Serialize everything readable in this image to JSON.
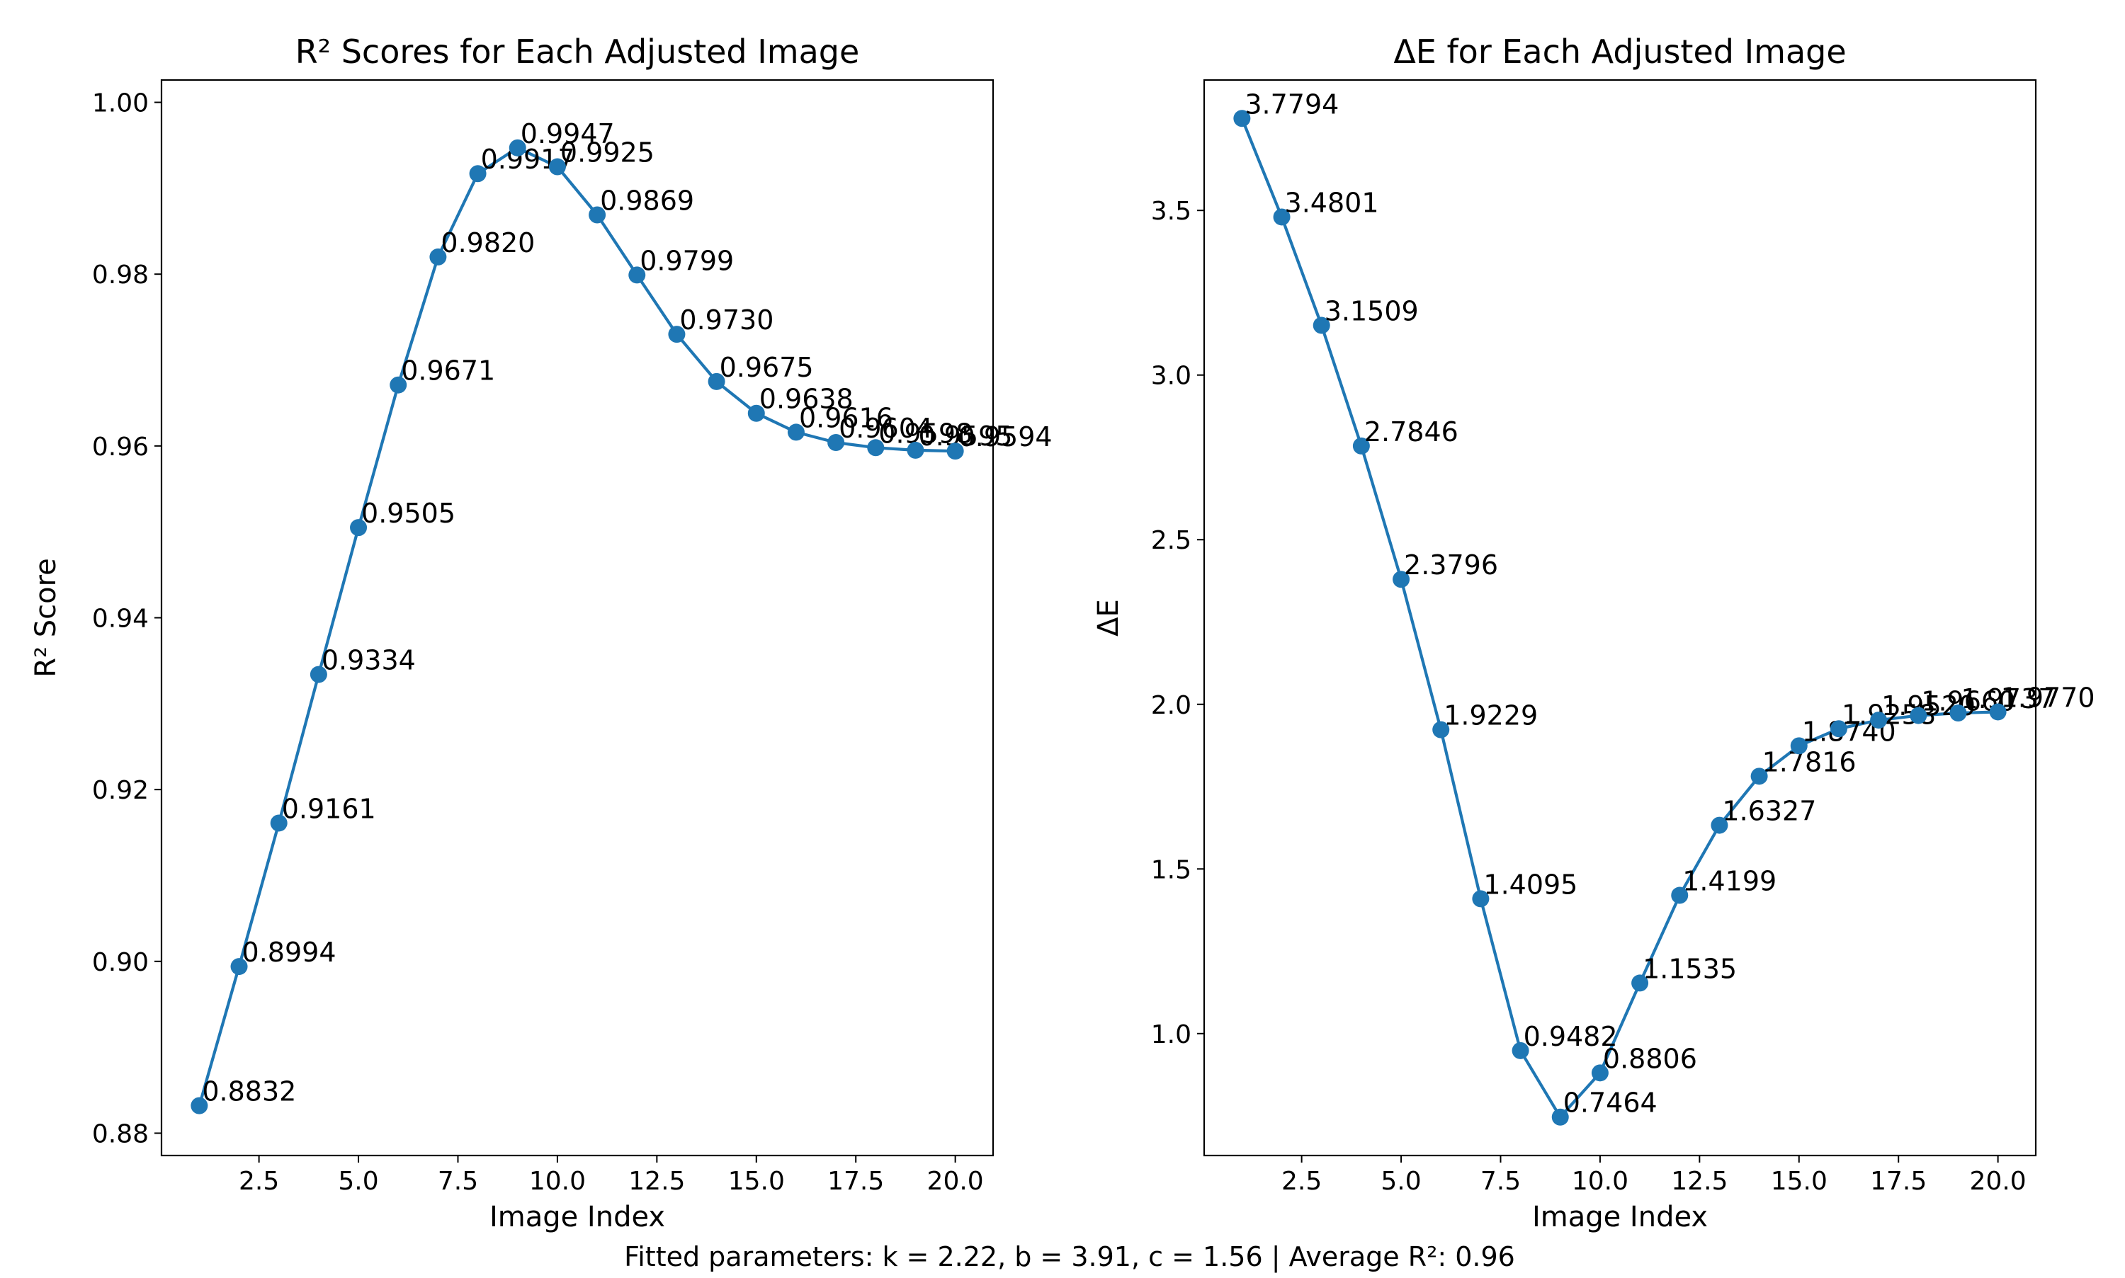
{
  "footer_text": "Fitted parameters: k = 2.22, b = 3.91, c = 1.56 | Average R²: 0.96",
  "series_color": "#1f77b4",
  "chart_data": [
    {
      "type": "line",
      "title": "R² Scores for Each Adjusted Image",
      "xlabel": "Image Index",
      "ylabel": "R² Score",
      "xlim": [
        0.05,
        20.95
      ],
      "ylim": [
        0.8774,
        1.0026
      ],
      "xticks": [
        2.5,
        5.0,
        7.5,
        10.0,
        12.5,
        15.0,
        17.5,
        20.0
      ],
      "xtick_labels": [
        "2.5",
        "5.0",
        "7.5",
        "10.0",
        "12.5",
        "15.0",
        "17.5",
        "20.0"
      ],
      "yticks": [
        0.88,
        0.9,
        0.92,
        0.94,
        0.96,
        0.98,
        1.0
      ],
      "ytick_labels": [
        "0.88",
        "0.90",
        "0.92",
        "0.94",
        "0.96",
        "0.98",
        "1.00"
      ],
      "grid": false,
      "markers": true,
      "x": [
        1,
        2,
        3,
        4,
        5,
        6,
        7,
        8,
        9,
        10,
        11,
        12,
        13,
        14,
        15,
        16,
        17,
        18,
        19,
        20
      ],
      "values": [
        0.8832,
        0.8994,
        0.9161,
        0.9334,
        0.9505,
        0.9671,
        0.982,
        0.9917,
        0.9947,
        0.9925,
        0.9869,
        0.9799,
        0.973,
        0.9675,
        0.9638,
        0.9616,
        0.9604,
        0.9598,
        0.9595,
        0.9594
      ],
      "data_labels": [
        "0.8832",
        "0.8994",
        "0.9161",
        "0.9334",
        "0.9505",
        "0.9671",
        "0.9820",
        "0.9917",
        "0.9947",
        "0.9925",
        "0.9869",
        "0.9799",
        "0.9730",
        "0.9675",
        "0.9638",
        "0.9616",
        "0.9604",
        "0.9598",
        "0.9595",
        "0.9594"
      ]
    },
    {
      "type": "line",
      "title": "ΔE for Each Adjusted Image",
      "xlabel": "Image Index",
      "ylabel": "ΔE",
      "xlim": [
        0.05,
        20.95
      ],
      "ylim": [
        0.6297,
        3.8961
      ],
      "xticks": [
        2.5,
        5.0,
        7.5,
        10.0,
        12.5,
        15.0,
        17.5,
        20.0
      ],
      "xtick_labels": [
        "2.5",
        "5.0",
        "7.5",
        "10.0",
        "12.5",
        "15.0",
        "17.5",
        "20.0"
      ],
      "yticks": [
        1.0,
        1.5,
        2.0,
        2.5,
        3.0,
        3.5
      ],
      "ytick_labels": [
        "1.0",
        "1.5",
        "2.0",
        "2.5",
        "3.0",
        "3.5"
      ],
      "grid": false,
      "markers": true,
      "x": [
        1,
        2,
        3,
        4,
        5,
        6,
        7,
        8,
        9,
        10,
        11,
        12,
        13,
        14,
        15,
        16,
        17,
        18,
        19,
        20
      ],
      "values": [
        3.7794,
        3.4801,
        3.1509,
        2.7846,
        2.3796,
        1.9229,
        1.4095,
        0.9482,
        0.7464,
        0.8806,
        1.1535,
        1.4199,
        1.6327,
        1.7816,
        1.874,
        1.9258,
        1.952,
        1.966,
        1.9737,
        1.977
      ],
      "data_labels": [
        "3.7794",
        "3.4801",
        "3.1509",
        "2.7846",
        "2.3796",
        "1.9229",
        "1.4095",
        "0.9482",
        "0.7464",
        "0.8806",
        "1.1535",
        "1.4199",
        "1.6327",
        "1.7816",
        "1.8740",
        "1.9258",
        "1.9520",
        "1.9660",
        "1.9737",
        "1.9770"
      ]
    }
  ]
}
